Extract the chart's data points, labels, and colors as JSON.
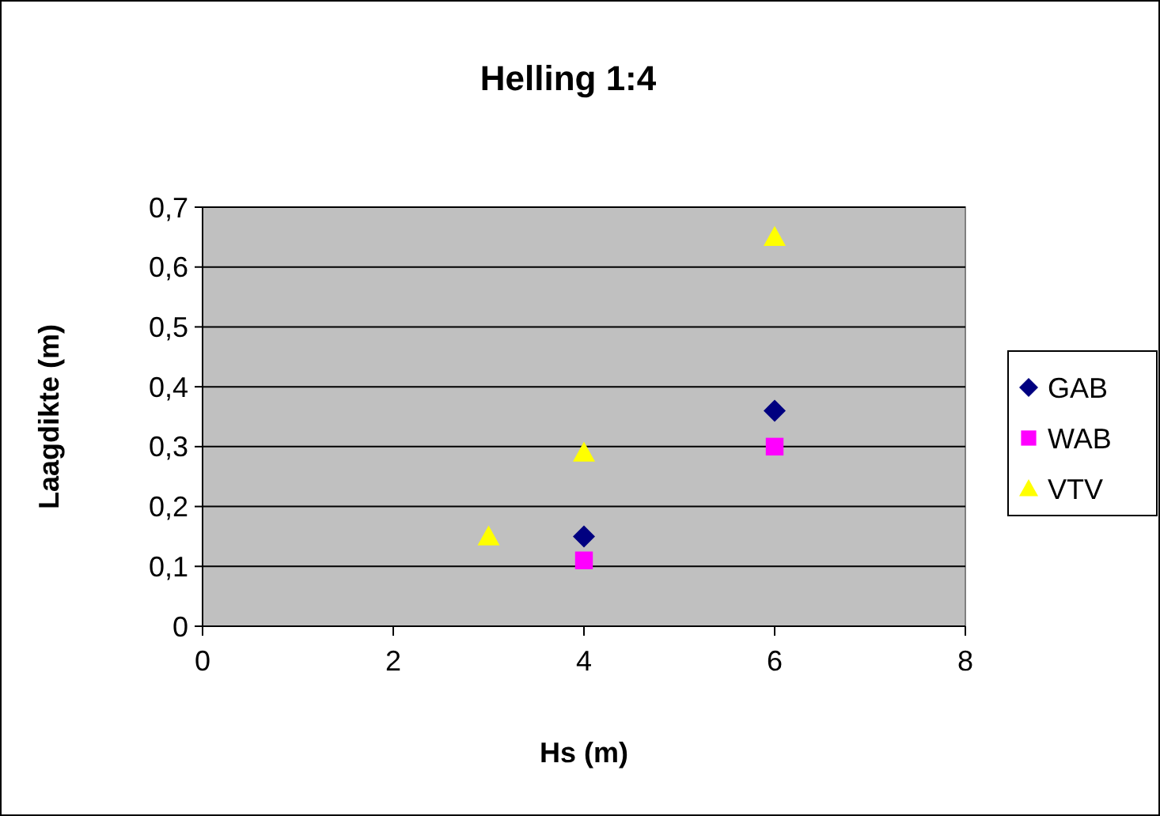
{
  "chart_data": {
    "type": "scatter",
    "title": "Helling 1:4",
    "xlabel": "Hs (m)",
    "ylabel": "Laagdikte (m)",
    "xlim": [
      0,
      8
    ],
    "xticks": [
      0,
      2,
      4,
      6,
      8
    ],
    "ylim": [
      0,
      0.7
    ],
    "yticks": [
      0,
      {
        "value": 0.1,
        "label": "0,1"
      },
      {
        "value": 0.2,
        "label": "0,2"
      },
      {
        "value": 0.3,
        "label": "0,3"
      },
      {
        "value": 0.4,
        "label": "0,4"
      },
      {
        "value": 0.5,
        "label": "0,5"
      },
      {
        "value": 0.6,
        "label": "0,6"
      },
      {
        "value": 0.7,
        "label": "0,7"
      }
    ],
    "grid": "y",
    "legend": "right",
    "series": [
      {
        "name": "GAB",
        "color": "#000080",
        "marker": "diamond",
        "x": [
          4,
          6
        ],
        "values": [
          0.15,
          0.36
        ]
      },
      {
        "name": "WAB",
        "color": "#ff00ff",
        "marker": "square",
        "x": [
          4,
          6
        ],
        "values": [
          0.11,
          0.3
        ]
      },
      {
        "name": "VTV",
        "color": "#ffff00",
        "marker": "triangle",
        "x": [
          3,
          4,
          6
        ],
        "values": [
          0.15,
          0.29,
          0.65
        ]
      }
    ]
  }
}
